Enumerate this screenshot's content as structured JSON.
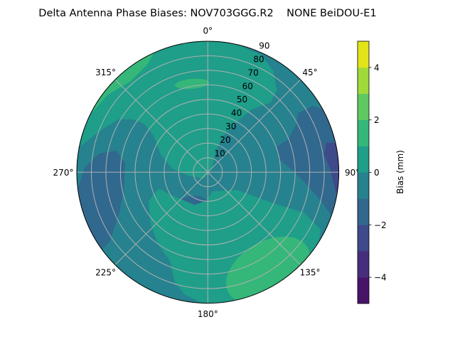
{
  "chart_data": {
    "type": "heatmap",
    "subtype": "polar-filled-contour",
    "title": "Delta Antenna Phase Biases: NOV703GGG.R2    NONE BeiDOU-E1",
    "angular_ticks": [
      "0°",
      "45°",
      "90°",
      "135°",
      "180°",
      "225°",
      "270°",
      "315°"
    ],
    "radial_ticks": [
      "10",
      "20",
      "30",
      "40",
      "50",
      "60",
      "70",
      "80",
      "90"
    ],
    "radial_range": [
      0,
      90
    ],
    "angular_direction": "clockwise, 0° at top",
    "grid": true,
    "colorbar": {
      "label": "Bias (mm)",
      "range": [
        -5,
        5
      ],
      "levels": [
        -5,
        -4,
        -3,
        -2,
        -1,
        0,
        1,
        2,
        3,
        4,
        5
      ],
      "tick_labels": [
        "−4",
        "−2",
        "0",
        "2",
        "4"
      ],
      "ticks": [
        -4,
        -2,
        0,
        2,
        4
      ],
      "colormap": "viridis",
      "colors": [
        "#481467",
        "#472e7c",
        "#3e4a89",
        "#31688e",
        "#26828e",
        "#1f9e89",
        "#35b779",
        "#5ec962",
        "#9fda3a",
        "#e3e418"
      ]
    },
    "contour_regions": [
      {
        "level": "-1 to 0",
        "description_level": -0.5,
        "area": "base"
      },
      {
        "level": "0 to 1",
        "description_level": 0.5,
        "area": "northwest / north / center"
      },
      {
        "level": "0 to 1",
        "description_level": 0.5,
        "area": "south"
      },
      {
        "level": "1 to 2",
        "description_level": 1.5,
        "area": "northwest edge, north, southeast"
      },
      {
        "level": "-2 to -1",
        "description_level": -1.5,
        "area": "west, east"
      },
      {
        "level": "-3 to -2",
        "description_level": -2.5,
        "area": "east edge"
      }
    ]
  }
}
